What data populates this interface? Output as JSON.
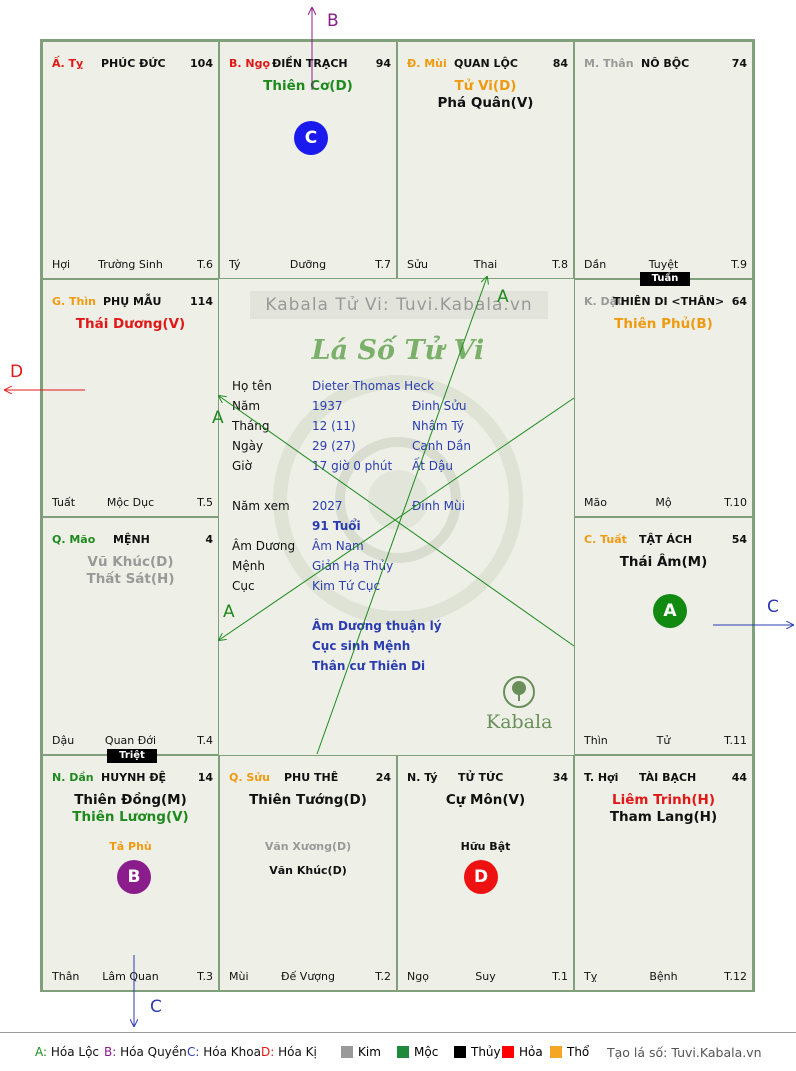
{
  "palaces": [
    {
      "id": "ty",
      "can": "Ấ. Tỵ",
      "can_color": "#e01818",
      "name": "PHÚC ĐỨC",
      "num": "104",
      "stars": [],
      "minor": [],
      "bottom": {
        "left": "Hợi",
        "center": "Trường Sinh",
        "right": "T.6"
      }
    },
    {
      "id": "ngo",
      "can": "B. Ngọ",
      "can_color": "#e01818",
      "name": "ĐIỀN TRẠCH",
      "num": "94",
      "stars": [
        {
          "t": "Thiên Cơ(D)",
          "c": "#1e8a1e"
        }
      ],
      "minor": [],
      "bottom": {
        "left": "Tý",
        "center": "Dưỡng",
        "right": "T.7"
      }
    },
    {
      "id": "mui",
      "can": "Đ. Mùi",
      "can_color": "#f09a10",
      "name": "QUAN LỘC",
      "num": "84",
      "stars": [
        {
          "t": "Tử Vi(D)",
          "c": "#f09a10"
        },
        {
          "t": "Phá Quân(V)",
          "c": "#111"
        }
      ],
      "minor": [],
      "bottom": {
        "left": "Sửu",
        "center": "Thai",
        "right": "T.8"
      }
    },
    {
      "id": "than",
      "can": "M. Thân",
      "can_color": "#999",
      "name": "NÔ BỘC",
      "num": "74",
      "stars": [],
      "minor": [],
      "bottom": {
        "left": "Dần",
        "center": "Tuyệt",
        "right": "T.9"
      }
    },
    {
      "id": "thin",
      "can": "G. Thìn",
      "can_color": "#f09a10",
      "name": "PHỤ MẪU",
      "num": "114",
      "stars": [
        {
          "t": "Thái Dương(V)",
          "c": "#e01818"
        }
      ],
      "minor": [],
      "bottom": {
        "left": "Tuất",
        "center": "Mộc Dục",
        "right": "T.5"
      }
    },
    {
      "id": "dau",
      "can": "K. Dậu",
      "can_color": "#999",
      "name": "THIÊN DI <THÂN>",
      "num": "64",
      "stars": [
        {
          "t": "Thiên Phủ(B)",
          "c": "#f09a10"
        }
      ],
      "minor": [],
      "bottom": {
        "left": "Mão",
        "center": "Mộ",
        "right": "T.10"
      }
    },
    {
      "id": "mao",
      "can": "Q. Mão",
      "can_color": "#1e8a1e",
      "name": "MỆNH",
      "num": "4",
      "stars": [
        {
          "t": "Vũ Khúc(D)",
          "c": "#999"
        },
        {
          "t": "Thất Sát(H)",
          "c": "#999"
        }
      ],
      "minor": [],
      "bottom": {
        "left": "Dậu",
        "center": "Quan Đới",
        "right": "T.4"
      }
    },
    {
      "id": "tuat",
      "can": "C. Tuất",
      "can_color": "#f09a10",
      "name": "TẬT ÁCH",
      "num": "54",
      "stars": [
        {
          "t": "Thái Âm(M)",
          "c": "#111"
        }
      ],
      "minor": [],
      "bottom": {
        "left": "Thìn",
        "center": "Tử",
        "right": "T.11"
      }
    },
    {
      "id": "dan",
      "can": "N. Dần",
      "can_color": "#1e8a1e",
      "name": "HUYNH ĐỆ",
      "num": "14",
      "stars": [
        {
          "t": "Thiên Đồng(M)",
          "c": "#111"
        },
        {
          "t": "Thiên Lương(V)",
          "c": "#1e8a1e"
        }
      ],
      "minor": [
        {
          "t": "Tả Phù",
          "c": "#f09a10"
        }
      ],
      "bottom": {
        "left": "Thân",
        "center": "Lâm Quan",
        "right": "T.3"
      }
    },
    {
      "id": "suu",
      "can": "Q. Sửu",
      "can_color": "#f09a10",
      "name": "PHU THÊ",
      "num": "24",
      "stars": [
        {
          "t": "Thiên Tướng(D)",
          "c": "#111"
        }
      ],
      "minor": [
        {
          "t": "Văn Xương(D)",
          "c": "#999"
        },
        {
          "t": "Văn Khúc(D)",
          "c": "#111"
        }
      ],
      "bottom": {
        "left": "Mùi",
        "center": "Đế Vượng",
        "right": "T.2"
      }
    },
    {
      "id": "ty2",
      "can": "N. Tý",
      "can_color": "#111",
      "name": "TỬ TỨC",
      "num": "34",
      "stars": [
        {
          "t": "Cự Môn(V)",
          "c": "#111"
        }
      ],
      "minor": [
        {
          "t": "Hữu Bật",
          "c": "#111"
        }
      ],
      "bottom": {
        "left": "Ngọ",
        "center": "Suy",
        "right": "T.1"
      }
    },
    {
      "id": "hoi",
      "can": "T. Hợi",
      "can_color": "#111",
      "name": "TÀI BẠCH",
      "num": "44",
      "stars": [
        {
          "t": "Liêm Trinh(H)",
          "c": "#e01818"
        },
        {
          "t": "Tham Lang(H)",
          "c": "#111"
        }
      ],
      "minor": [],
      "bottom": {
        "left": "Tỵ",
        "center": "Bệnh",
        "right": "T.12"
      }
    }
  ],
  "tags": {
    "tuan": "Tuần",
    "triet": "Triệt"
  },
  "circles": {
    "ngo": "C",
    "tuat": "A",
    "dan": "B",
    "ty2": "D"
  },
  "center": {
    "watermark": "Kabala Tử Vi: Tuvi.Kabala.vn",
    "title": "Lá Số Tử Vi",
    "rows": [
      {
        "label": "Họ tên",
        "v1": "Dieter Thomas Heck",
        "v2": ""
      },
      {
        "label": "Năm",
        "v1": "1937",
        "v2": "Đinh Sửu"
      },
      {
        "label": "Tháng",
        "v1": "12  (11)",
        "v2": "Nhâm Tý"
      },
      {
        "label": "Ngày",
        "v1": "29  (27)",
        "v2": "Canh Dần"
      },
      {
        "label": "Giờ",
        "v1": "17 giờ 0 phút",
        "v2": "Ất Dậu"
      }
    ],
    "nam_xem": {
      "label": "Năm xem",
      "v1": "2027",
      "v2": "Đinh Mùi"
    },
    "tuoi": "91 Tuổi",
    "rows2": [
      {
        "label": "Âm Dương",
        "v1": "Âm Nam"
      },
      {
        "label": "Mệnh",
        "v1": "Giản Hạ Thủy"
      },
      {
        "label": "Cục",
        "v1": "Kim Tứ Cục"
      }
    ],
    "notes": [
      "Âm Dương thuận lý",
      "Cục sinh Mệnh",
      "Thân cư Thiên Di"
    ],
    "brand": "Kabala"
  },
  "arrow_labels": {
    "B": "B",
    "D": "D",
    "C_right": "C",
    "C_bottom": "C",
    "A1": "A",
    "A2": "A",
    "A3": "A"
  },
  "legend": {
    "items": [
      {
        "t": "A: Hóa Lộc",
        "c": "#1e8a1e"
      },
      {
        "t": "B: Hóa Quyền",
        "c": "#8b1c8b"
      },
      {
        "t": "C: Hóa Khoa",
        "c": "#2a3cb0"
      },
      {
        "t": "D: Hóa Kị",
        "c": "#e01818"
      }
    ],
    "elements": [
      {
        "t": "Kim",
        "c": "#999999"
      },
      {
        "t": "Mộc",
        "c": "#1e8a3a"
      },
      {
        "t": "Thủy",
        "c": "#000000"
      },
      {
        "t": "Hỏa",
        "c": "#ff0000"
      },
      {
        "t": "Thổ",
        "c": "#f5a623"
      }
    ],
    "site": "Tạo lá số: Tuvi.Kabala.vn"
  }
}
